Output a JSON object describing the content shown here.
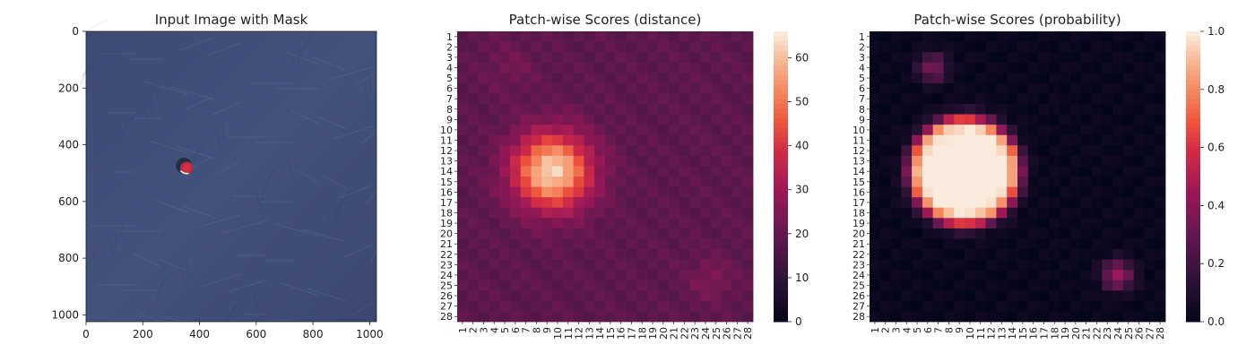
{
  "chart_data": [
    {
      "type": "image",
      "title": "Input Image with Mask",
      "x_ticks": [
        0,
        200,
        400,
        600,
        800,
        1000
      ],
      "y_ticks": [
        0,
        200,
        400,
        600,
        800,
        1000
      ],
      "xlim": [
        0,
        1024
      ],
      "ylim": [
        1024,
        0
      ],
      "background_color": "#41507a",
      "mask": {
        "x": 355,
        "y": 482,
        "radius": 20,
        "color": "#d6374c"
      }
    },
    {
      "type": "heatmap",
      "title": "Patch-wise Scores (distance)",
      "rows": [
        "1",
        "2",
        "3",
        "4",
        "5",
        "6",
        "7",
        "8",
        "9",
        "10",
        "11",
        "12",
        "13",
        "14",
        "15",
        "16",
        "17",
        "18",
        "19",
        "20",
        "21",
        "22",
        "23",
        "24",
        "25",
        "26",
        "27",
        "28"
      ],
      "cols": [
        "1",
        "2",
        "3",
        "4",
        "5",
        "6",
        "7",
        "8",
        "9",
        "10",
        "11",
        "12",
        "13",
        "14",
        "15",
        "16",
        "17",
        "18",
        "19",
        "20",
        "21",
        "22",
        "23",
        "24",
        "25",
        "26",
        "27",
        "28"
      ],
      "colormap": "rocket",
      "vmin": 0,
      "vmax": 66,
      "colorbar_ticks": [
        0,
        10,
        20,
        30,
        40,
        50,
        60
      ],
      "background": 19,
      "blobs": [
        {
          "row": 14,
          "col": 9.5,
          "peak": 45,
          "sigma": 2.6
        },
        {
          "row": 24.5,
          "col": 24.5,
          "peak": 6,
          "sigma": 1.6
        },
        {
          "row": 4,
          "col": 5.5,
          "peak": 4,
          "sigma": 1.8
        }
      ]
    },
    {
      "type": "heatmap",
      "title": "Patch-wise Scores (probability)",
      "rows": [
        "1",
        "2",
        "3",
        "4",
        "5",
        "6",
        "7",
        "8",
        "9",
        "10",
        "11",
        "12",
        "13",
        "14",
        "15",
        "16",
        "17",
        "18",
        "19",
        "20",
        "21",
        "22",
        "23",
        "24",
        "25",
        "26",
        "27",
        "28"
      ],
      "cols": [
        "1",
        "2",
        "3",
        "4",
        "5",
        "6",
        "7",
        "8",
        "9",
        "10",
        "11",
        "12",
        "13",
        "14",
        "15",
        "16",
        "17",
        "18",
        "19",
        "20",
        "21",
        "22",
        "23",
        "24",
        "25",
        "26",
        "27",
        "28"
      ],
      "colormap": "rocket",
      "vmin": 0.0,
      "vmax": 1.0,
      "colorbar_ticks": [
        "0.0",
        "0.2",
        "0.4",
        "0.6",
        "0.8",
        "1.0"
      ],
      "blobs": [
        {
          "row": 14,
          "col": 9.5,
          "peak": 1.0,
          "radius": 5.2
        },
        {
          "row": 24,
          "col": 24,
          "peak": 0.42,
          "radius": 1.3
        },
        {
          "row": 4,
          "col": 6.5,
          "peak": 0.35,
          "radius": 1.2
        }
      ]
    }
  ]
}
